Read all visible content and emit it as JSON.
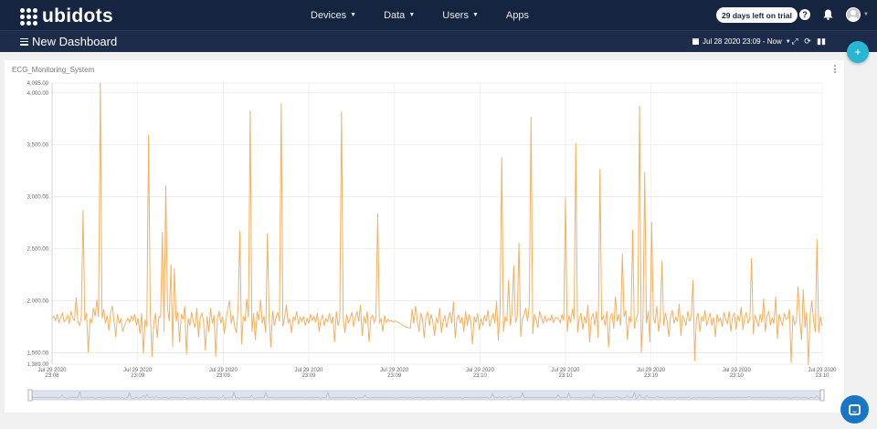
{
  "app": {
    "logo_text": "ubidots",
    "nav": [
      {
        "label": "Devices",
        "has_caret": true
      },
      {
        "label": "Data",
        "has_caret": true
      },
      {
        "label": "Users",
        "has_caret": true
      },
      {
        "label": "Apps",
        "has_caret": false
      }
    ],
    "trial_label": "29 days left on trial",
    "help_icon": "help-circle-icon",
    "bell_icon": "bell-icon"
  },
  "dashboard": {
    "title": "New Dashboard",
    "date_range": "Jul 28 2020 23:09 - Now",
    "fab_label": "+"
  },
  "widget": {
    "title": "ECG_Monitoring_System",
    "line_color": "#f5b061"
  },
  "chart_data": {
    "type": "line",
    "title": "",
    "xlabel": "",
    "ylabel": "",
    "ylim": [
      1389,
      4095
    ],
    "y_ticks": [
      {
        "value": 4095,
        "label": "4,095.00"
      },
      {
        "value": 4000,
        "label": "4,000.00"
      },
      {
        "value": 3500,
        "label": "3,500.00"
      },
      {
        "value": 3000,
        "label": "3,000.00"
      },
      {
        "value": 2500,
        "label": "2,500.00"
      },
      {
        "value": 2000,
        "label": "2,000.00"
      },
      {
        "value": 1500,
        "label": "1,500.00"
      },
      {
        "value": 1389,
        "label": "1,389.00"
      }
    ],
    "x_ticks": [
      {
        "date": "Jul 29 2020",
        "time": "23:08"
      },
      {
        "date": "Jul 29 2020",
        "time": "23:09"
      },
      {
        "date": "Jul 29 2020",
        "time": "23:09"
      },
      {
        "date": "Jul 29 2020",
        "time": "23:09"
      },
      {
        "date": "Jul 29 2020",
        "time": "23:09"
      },
      {
        "date": "Jul 29 2020",
        "time": "23:10"
      },
      {
        "date": "Jul 29 2020",
        "time": "23:10"
      },
      {
        "date": "Jul 29 2020",
        "time": "23:10"
      },
      {
        "date": "Jul 29 2020",
        "time": "23:10"
      },
      {
        "date": "Jul 29 2020",
        "time": "23:10"
      }
    ],
    "grid": true,
    "baseline": 1830,
    "series": [
      {
        "values": [
          1830,
          1850,
          1810,
          1870,
          1790,
          1840,
          1880,
          1800,
          1820,
          1860,
          1780,
          1900,
          1830,
          1810,
          2030,
          1800,
          1760,
          1850,
          2870,
          1810,
          1880,
          1500,
          1820,
          1790,
          1930,
          1850,
          2010,
          1840,
          4095,
          1830,
          1920,
          1780,
          1860,
          1710,
          1890,
          1950,
          1800,
          1650,
          1870,
          1780,
          1830,
          1700,
          1760,
          1800,
          1830,
          1790,
          1850,
          1810,
          1870,
          1760,
          1830,
          1680,
          1880,
          1490,
          1820,
          1750,
          3600,
          1900,
          1460,
          1780,
          1880,
          1640,
          1850,
          1840,
          2660,
          1700,
          3110,
          1930,
          1800,
          2350,
          1550,
          2310,
          1800,
          1890,
          1600,
          1870,
          1820,
          1950,
          1480,
          1830,
          1760,
          1890,
          1800,
          1740,
          1930,
          1650,
          1840,
          1880,
          1790,
          1520,
          1850,
          1700,
          1930,
          1780,
          1860,
          1460,
          1840,
          1900,
          1780,
          1850,
          1680,
          1830,
          1920,
          2000,
          1780,
          1860,
          1750,
          1690,
          1940,
          2670,
          1580,
          1850,
          1800,
          2020,
          1840,
          3830,
          1700,
          1880,
          1620,
          1900,
          1810,
          2010,
          1780,
          1850,
          1690,
          2650,
          1830,
          1550,
          1900,
          1760,
          1840,
          1890,
          1800,
          3900,
          1750,
          1840,
          1960,
          1780,
          1830,
          1690,
          1850,
          1810,
          1900,
          1770,
          1840,
          1800,
          1850,
          1760,
          1830,
          1780,
          1870,
          1810,
          1850,
          1790,
          1880,
          1700,
          1820,
          1860,
          1760,
          1830,
          1800,
          1880,
          1780,
          1850,
          1600,
          1900,
          1760,
          1830,
          3820,
          1820,
          1690,
          1870,
          1780,
          1830,
          1890,
          1750,
          1840,
          1900,
          1800,
          1960,
          1660,
          1850,
          1780,
          1900,
          1600,
          1830,
          1860,
          1790,
          1840,
          2840,
          1780,
          1830,
          1700,
          1860,
          1790,
          1820,
          1800,
          1810,
          1795,
          1805,
          1800,
          1790,
          1780,
          1770,
          1760,
          1750,
          1745,
          1740,
          1735,
          1920,
          1780,
          1950,
          1810,
          1700,
          1880,
          1820,
          1640,
          1850,
          1890,
          1760,
          1870,
          1800,
          1660,
          1840,
          1780,
          1930,
          1690,
          1800,
          1860,
          1740,
          1830,
          1890,
          1780,
          1990,
          1640,
          1830,
          1860,
          1780,
          1840,
          1700,
          1900,
          1760,
          1870,
          1810,
          1580,
          1850,
          1790,
          1880,
          1720,
          1830,
          1760,
          1860,
          1800,
          1910,
          1750,
          1820,
          1880,
          1780,
          2000,
          1620,
          1870,
          3380,
          1700,
          1850,
          1800,
          2200,
          1760,
          1890,
          2340,
          1790,
          1850,
          2560,
          1650,
          1830,
          1860,
          1930,
          1800,
          1960,
          3770,
          1680,
          1870,
          1820,
          1740,
          1900,
          1840,
          1780,
          1850,
          1800,
          1830,
          1810,
          1860,
          1790,
          1830,
          1840,
          1820,
          1790,
          1870,
          1810,
          3000,
          1700,
          1860,
          1790,
          1920,
          1820,
          3520,
          1690,
          1830,
          1880,
          1720,
          1850,
          1780,
          1960,
          1600,
          1830,
          1880,
          1760,
          1900,
          1640,
          3270,
          1810,
          1850,
          1760,
          1900,
          1550,
          1840,
          1880,
          1730,
          2040,
          1800,
          1870,
          1760,
          2450,
          1840,
          1910,
          1620,
          1850,
          1790,
          2680,
          1730,
          1820,
          1880,
          3880,
          1500,
          1830,
          3240,
          1780,
          1900,
          1600,
          2760,
          1840,
          1780,
          1950,
          1700,
          1830,
          2380,
          1760,
          1880,
          1800,
          1650,
          1850,
          1910,
          1780,
          1840,
          1800,
          1970,
          1660,
          1860,
          1820,
          1760,
          1900,
          1800,
          1850,
          2200,
          1420,
          1830,
          1880,
          1700,
          1850,
          1800,
          1910,
          1760,
          1830,
          1880,
          1760,
          1840,
          1650,
          1870,
          1800,
          1830,
          1750,
          1890,
          1820,
          1780,
          1900,
          1700,
          1850,
          1880,
          1720,
          1860,
          1800,
          1940,
          1720,
          1840,
          1890,
          1780,
          1830,
          2410,
          1680,
          1860,
          1810,
          1750,
          1870,
          1790,
          2020,
          1700,
          1850,
          1900,
          1760,
          1840,
          1780,
          2040,
          1630,
          1870,
          1810,
          1760,
          1880,
          1820,
          1830,
          1920,
          1400,
          1860,
          1770,
          1800,
          2140,
          1830,
          1620,
          2110,
          1740,
          1890,
          1380,
          1860,
          2000,
          1810,
          1700,
          2590,
          1690,
          1850,
          1760
        ]
      }
    ]
  }
}
